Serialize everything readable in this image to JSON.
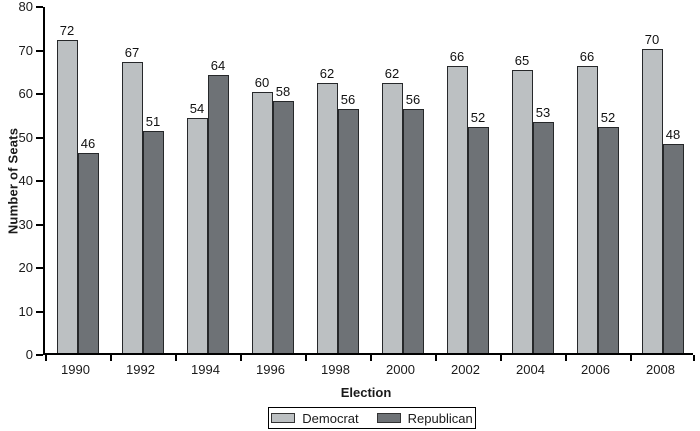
{
  "chart_data": {
    "type": "bar",
    "title": "",
    "xlabel": "Election",
    "ylabel": "Number of Seats",
    "categories": [
      "1990",
      "1992",
      "1994",
      "1996",
      "1998",
      "2000",
      "2002",
      "2004",
      "2006",
      "2008"
    ],
    "series": [
      {
        "name": "Democrat",
        "color": "#bcc0c2",
        "values": [
          72,
          67,
          54,
          60,
          62,
          62,
          66,
          65,
          66,
          70
        ]
      },
      {
        "name": "Republican",
        "color": "#6e7276",
        "values": [
          46,
          51,
          64,
          58,
          56,
          56,
          52,
          53,
          52,
          48
        ]
      }
    ],
    "ylim": [
      0,
      80
    ],
    "yticks": [
      0,
      10,
      20,
      30,
      40,
      50,
      60,
      70,
      80
    ],
    "grid": false,
    "legend_position": "bottom",
    "axis_color": "#000000",
    "bar_border_color": "#26282a",
    "value_labels_shown": true
  }
}
